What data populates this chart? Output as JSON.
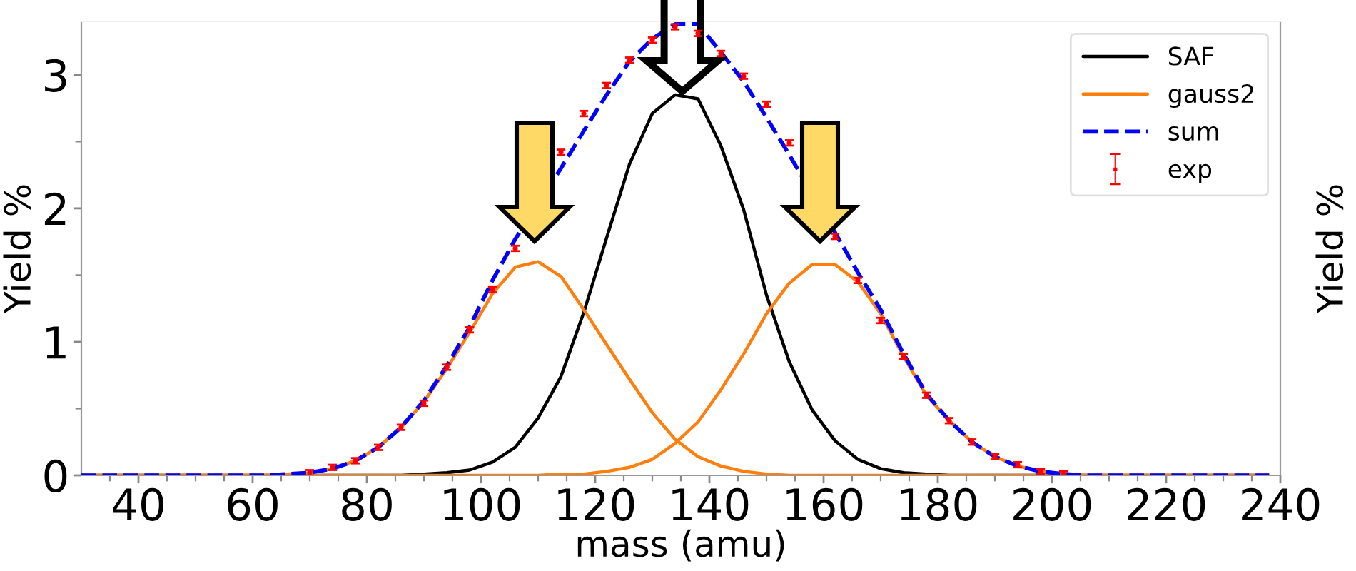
{
  "chart_data": {
    "type": "line",
    "xlabel": "mass (amu)",
    "ylabel": "Yield %",
    "annotations": [
      "Yield %"
    ],
    "x": [
      30,
      34,
      38,
      42,
      46,
      50,
      54,
      58,
      62,
      66,
      70,
      74,
      78,
      82,
      86,
      90,
      94,
      98,
      102,
      106,
      110,
      114,
      118,
      122,
      126,
      130,
      134,
      138,
      142,
      146,
      150,
      154,
      158,
      162,
      166,
      170,
      174,
      178,
      182,
      186,
      190,
      194,
      198,
      202,
      206,
      210,
      214,
      218,
      222,
      226,
      230,
      234,
      238
    ],
    "series": [
      {
        "name": "SAF",
        "color": "#000000",
        "values": [
          0,
          0,
          0,
          0,
          0,
          0,
          0,
          0,
          0,
          0,
          0,
          0,
          0,
          0,
          0,
          0.01,
          0.02,
          0.04,
          0.1,
          0.21,
          0.43,
          0.74,
          1.22,
          1.78,
          2.33,
          2.71,
          2.85,
          2.82,
          2.47,
          1.99,
          1.35,
          0.85,
          0.49,
          0.26,
          0.12,
          0.05,
          0.02,
          0.01,
          0,
          0,
          0,
          0,
          0,
          0,
          0,
          0,
          0,
          0,
          0,
          0,
          0,
          0,
          0
        ]
      },
      {
        "name": "gauss2",
        "color": "#ff7f0e",
        "values": [
          0,
          0,
          0,
          0,
          0,
          0,
          0,
          0,
          0,
          0.01,
          0.02,
          0.05,
          0.11,
          0.21,
          0.36,
          0.55,
          0.8,
          1.07,
          1.36,
          1.56,
          1.6,
          1.49,
          1.24,
          0.98,
          0.72,
          0.47,
          0.27,
          0.14,
          0.07,
          0.03,
          0.01,
          0,
          0,
          0,
          0,
          0,
          0,
          0,
          0,
          0,
          0,
          0,
          0,
          0,
          0,
          0,
          0,
          0,
          0,
          0,
          0,
          0,
          0
        ]
      },
      {
        "color": "#ff7f0e",
        "values": [
          0,
          0,
          0,
          0,
          0,
          0,
          0,
          0,
          0,
          0,
          0,
          0,
          0,
          0,
          0,
          0,
          0,
          0,
          0,
          0,
          0,
          0.01,
          0.01,
          0.03,
          0.06,
          0.12,
          0.24,
          0.4,
          0.64,
          0.91,
          1.21,
          1.44,
          1.58,
          1.58,
          1.45,
          1.21,
          0.89,
          0.6,
          0.41,
          0.25,
          0.14,
          0.07,
          0.03,
          0.01,
          0,
          0,
          0,
          0,
          0,
          0,
          0,
          0,
          0
        ]
      },
      {
        "name": "sum",
        "color": "#0000ff",
        "line_style": "dashed",
        "x": [
          30,
          34,
          38,
          42,
          46,
          50,
          54,
          58,
          62,
          66,
          70,
          74,
          78,
          82,
          86,
          90,
          94,
          98,
          102,
          106,
          114,
          118,
          122,
          126,
          130,
          134,
          138,
          142,
          146,
          150,
          154,
          162,
          166,
          170,
          174,
          178,
          182,
          186,
          190,
          194,
          198,
          202,
          206,
          210,
          214,
          218,
          222,
          226,
          230,
          234,
          238
        ],
        "values": [
          0,
          0,
          0,
          0,
          0,
          0,
          0,
          0,
          0,
          0.01,
          0.02,
          0.05,
          0.11,
          0.21,
          0.36,
          0.56,
          0.82,
          1.11,
          1.46,
          1.77,
          2.3,
          2.58,
          2.85,
          3.1,
          3.27,
          3.38,
          3.38,
          3.17,
          2.95,
          2.68,
          2.4,
          1.82,
          1.52,
          1.24,
          0.91,
          0.61,
          0.41,
          0.25,
          0.14,
          0.07,
          0.03,
          0.01,
          0,
          0,
          0,
          0,
          0,
          0,
          0,
          0,
          0
        ]
      },
      {
        "name": "exp",
        "type": "scatter",
        "color": "#ff0000",
        "marker": "circle",
        "x": [
          70,
          74,
          78,
          82,
          86,
          90,
          94,
          98,
          102,
          106,
          110,
          114,
          118,
          122,
          126,
          130,
          134,
          138,
          142,
          146,
          150,
          154,
          158,
          162,
          166,
          170,
          174,
          178,
          182,
          186,
          190,
          194,
          198,
          202
        ],
        "values": [
          0.02,
          0.06,
          0.11,
          0.21,
          0.36,
          0.54,
          0.81,
          1.09,
          1.39,
          1.7,
          null,
          2.42,
          2.71,
          2.92,
          3.11,
          3.26,
          3.36,
          3.31,
          3.16,
          2.99,
          2.78,
          2.49,
          null,
          1.79,
          1.46,
          1.16,
          0.89,
          0.6,
          0.41,
          0.25,
          0.14,
          0.08,
          0.03,
          0.01
        ],
        "errors": [
          0.02,
          0.02,
          0.02,
          0.02,
          0.02,
          0.02,
          0.02,
          0.02,
          0.02,
          0.02,
          null,
          0.02,
          0.02,
          0.02,
          0.02,
          0.02,
          0.02,
          0.02,
          0.02,
          0.02,
          0.02,
          0.02,
          null,
          0.02,
          0.02,
          0.02,
          0.02,
          0.02,
          0.02,
          0.02,
          0.02,
          0.02,
          0.02,
          0.02
        ]
      }
    ],
    "xlim": [
      30,
      240
    ],
    "xticks": [
      {
        "value": 35,
        "label": null
      },
      40,
      {
        "value": 45,
        "label": null
      },
      {
        "value": 50,
        "label": null
      },
      {
        "value": 55,
        "label": null
      },
      60,
      {
        "value": 65,
        "label": null
      },
      {
        "value": 70,
        "label": null
      },
      {
        "value": 75,
        "label": null
      },
      80,
      {
        "value": 85,
        "label": null
      },
      {
        "value": 90,
        "label": null
      },
      {
        "value": 95,
        "label": null
      },
      100,
      {
        "value": 105,
        "label": null
      },
      {
        "value": 110,
        "label": null
      },
      {
        "value": 115,
        "label": null
      },
      120,
      {
        "value": 125,
        "label": null
      },
      {
        "value": 130,
        "label": null
      },
      {
        "value": 135,
        "label": null
      },
      140,
      {
        "value": 145,
        "label": null
      },
      {
        "value": 150,
        "label": null
      },
      {
        "value": 155,
        "label": null
      },
      160,
      {
        "value": 165,
        "label": null
      },
      {
        "value": 170,
        "label": null
      },
      {
        "value": 175,
        "label": null
      },
      180,
      {
        "value": 185,
        "label": null
      },
      {
        "value": 190,
        "label": null
      },
      {
        "value": 195,
        "label": null
      },
      200,
      {
        "value": 205,
        "label": null
      },
      {
        "value": 210,
        "label": null
      },
      {
        "value": 215,
        "label": null
      },
      220,
      {
        "value": 225,
        "label": null
      },
      {
        "value": 230,
        "label": null
      },
      {
        "value": 235,
        "label": null
      },
      240
    ],
    "ylim": [
      0,
      3.4
    ],
    "yticks": [
      0,
      {
        "value": 0.5,
        "label": null
      },
      1,
      {
        "value": 1.5,
        "label": null
      },
      2,
      {
        "value": 2.5,
        "label": null
      },
      3
    ],
    "legend": "top right"
  }
}
